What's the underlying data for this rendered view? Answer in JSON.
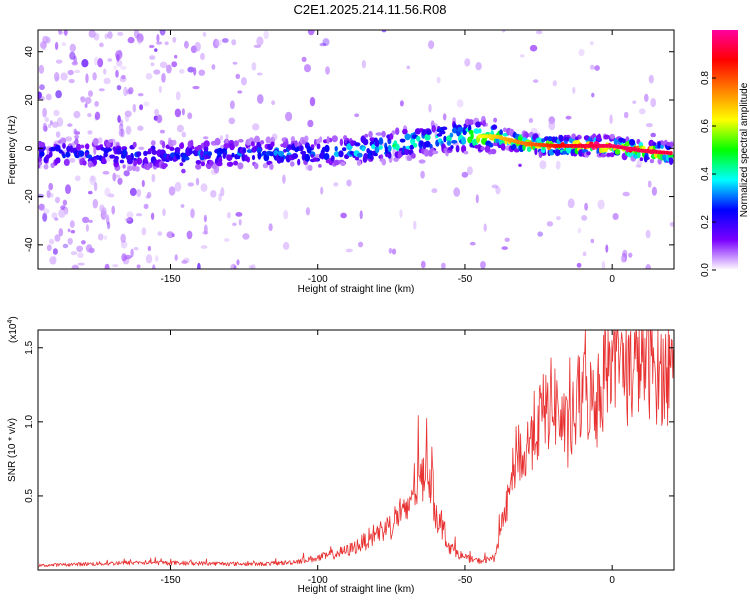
{
  "figure": {
    "title": "C2E1.2025.214.11.56.R08"
  },
  "chart_data": [
    {
      "type": "heatmap",
      "title": "C2E1.2025.214.11.56.R08",
      "xlabel": "Height of straight line (km)",
      "ylabel": "Frequency (Hz)",
      "xlim": [
        -195,
        21
      ],
      "ylim": [
        -50,
        49
      ],
      "x_ticks": [
        -150,
        -100,
        -50,
        0
      ],
      "x_tick_labels": [
        "-150",
        "-100",
        "-50",
        "0"
      ],
      "y_ticks": [
        -40,
        -20,
        0,
        20,
        40
      ],
      "y_tick_labels": [
        "-40",
        "-20",
        "0",
        "20",
        "40"
      ],
      "grid": false,
      "ridge": {
        "x": [
          -195,
          -150,
          -120,
          -100,
          -90,
          -80,
          -70,
          -60,
          -50,
          -40,
          -30,
          -20,
          -10,
          0,
          10,
          20
        ],
        "y": [
          -2,
          -3,
          -2,
          -2,
          -1,
          0,
          2,
          4,
          5,
          5,
          2,
          1,
          1,
          1,
          -1,
          -2
        ]
      },
      "ridge_peak_amplitude": {
        "x": [
          -195,
          -150,
          -120,
          -100,
          -80,
          -60,
          -45,
          -35,
          -25,
          -15,
          0,
          20
        ],
        "value": [
          0.28,
          0.3,
          0.32,
          0.34,
          0.42,
          0.48,
          0.62,
          0.72,
          0.8,
          0.9,
          0.95,
          0.92
        ]
      },
      "colorbar": {
        "label": "Normalized spectral amplitude",
        "range": [
          0,
          1
        ],
        "ticks": [
          0.0,
          0.2,
          0.4,
          0.6,
          0.8
        ],
        "tick_labels": [
          "0.0",
          "0.2",
          "0.4",
          "0.6",
          "0.8"
        ],
        "colors": [
          "#ffffff",
          "#7a00ff",
          "#0000ff",
          "#00ffff",
          "#00ff00",
          "#ffff00",
          "#ff8000",
          "#ff0000",
          "#ff00a0"
        ]
      }
    },
    {
      "type": "line",
      "xlabel": "Height of straight line (km)",
      "ylabel": "SNR (10 * v/v)",
      "y_multiplier_label": "(x10",
      "y_multiplier_exponent": "4",
      "y_multiplier_close": ")",
      "xlim": [
        -195,
        21
      ],
      "ylim": [
        0,
        16200
      ],
      "x_ticks": [
        -150,
        -100,
        -50,
        0
      ],
      "x_tick_labels": [
        "-150",
        "-100",
        "-50",
        "0"
      ],
      "y_ticks": [
        5000,
        10000,
        15000
      ],
      "y_tick_labels": [
        "0.5",
        "1.0",
        "1.5"
      ],
      "grid": false,
      "series": [
        {
          "color": "#e83030",
          "x": [
            -195,
            -180,
            -160,
            -140,
            -120,
            -110,
            -100,
            -90,
            -85,
            -80,
            -75,
            -72,
            -70,
            -68,
            -65,
            -63,
            -60,
            -55,
            -50,
            -45,
            -40,
            -38,
            -35,
            -32,
            -30,
            -28,
            -25,
            -20,
            -15,
            -10,
            -5,
            0,
            5,
            10,
            15,
            20
          ],
          "y": [
            300,
            400,
            500,
            450,
            400,
            500,
            800,
            1300,
            1800,
            2500,
            3000,
            4000,
            3500,
            5500,
            6000,
            8000,
            4000,
            1500,
            800,
            600,
            800,
            2500,
            5000,
            8500,
            7000,
            9000,
            10000,
            11500,
            9000,
            12000,
            11000,
            15500,
            13000,
            14500,
            13500,
            13000
          ]
        }
      ]
    }
  ]
}
